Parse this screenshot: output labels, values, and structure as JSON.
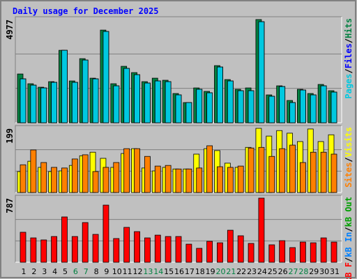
{
  "chart_data": [
    {
      "type": "bar",
      "title": "Daily usage for December 2025",
      "ylim": [
        0,
        4977
      ],
      "yticks": [
        4977
      ],
      "legend_separator": "/",
      "series": [
        {
          "name": "Hits",
          "color": "#008040",
          "values": [
            2352,
            1882,
            1714,
            1982,
            3494,
            2016,
            3091,
            2150,
            4469,
            1882,
            2722,
            2419,
            1982,
            2150,
            2050,
            1411,
            974,
            1680,
            1512,
            2755,
            2083,
            1613,
            1680,
            4977,
            1344,
            1781,
            1075,
            1613,
            1411,
            1848,
            1546
          ]
        },
        {
          "name": "Files",
          "color": "#0000ff",
          "values": [
            2117,
            1814,
            1680,
            1949,
            3494,
            1949,
            3024,
            2117,
            4402,
            1781,
            2621,
            2318,
            1915,
            2016,
            1982,
            1344,
            974,
            1613,
            1445,
            2688,
            2016,
            1546,
            1546,
            4872,
            1277,
            1747,
            974,
            1579,
            1344,
            1781,
            1478
          ]
        },
        {
          "name": "Pages",
          "color": "#00c8e0",
          "values": [
            2117,
            1814,
            1680,
            1949,
            3494,
            1949,
            3024,
            2117,
            4402,
            1781,
            2621,
            2318,
            1915,
            2016,
            1982,
            1344,
            974,
            1613,
            1445,
            2688,
            2016,
            1546,
            1546,
            4872,
            1277,
            1747,
            974,
            1579,
            1344,
            1781,
            1478
          ]
        }
      ]
    },
    {
      "type": "bar",
      "ylim": [
        0,
        199
      ],
      "yticks": [
        199
      ],
      "legend_separator": "/",
      "series": [
        {
          "name": "Visits",
          "color": "#ffff00",
          "values": [
            65,
            97,
            78,
            65,
            67,
            84,
            114,
            125,
            106,
            78,
            121,
            136,
            76,
            67,
            78,
            73,
            73,
            119,
            136,
            130,
            91,
            78,
            140,
            199,
            175,
            192,
            184,
            158,
            197,
            158,
            179
          ]
        },
        {
          "name": "Sites",
          "color": "#ff8000",
          "values": [
            86,
            132,
            93,
            78,
            76,
            104,
            117,
            65,
            78,
            93,
            136,
            136,
            112,
            82,
            84,
            73,
            73,
            76,
            145,
            80,
            78,
            82,
            138,
            140,
            112,
            136,
            147,
            93,
            125,
            125,
            119
          ]
        }
      ]
    },
    {
      "type": "bar",
      "ylim": [
        0,
        787
      ],
      "yticks": [
        787
      ],
      "legend_separator": "/",
      "categories": [
        "1",
        "2",
        "3",
        "4",
        "5",
        "6",
        "7",
        "8",
        "9",
        "10",
        "11",
        "12",
        "13",
        "14",
        "15",
        "16",
        "17",
        "18",
        "19",
        "20",
        "21",
        "22",
        "23",
        "24",
        "25",
        "26",
        "27",
        "28",
        "29",
        "30",
        "31"
      ],
      "category_colors": [
        "#000000",
        "#000000",
        "#000000",
        "#000000",
        "#000000",
        "#008040",
        "#008040",
        "#000000",
        "#000000",
        "#000000",
        "#000000",
        "#000000",
        "#008040",
        "#008040",
        "#000000",
        "#000000",
        "#000000",
        "#000000",
        "#000000",
        "#008040",
        "#008040",
        "#000000",
        "#000000",
        "#000000",
        "#000000",
        "#000000",
        "#008040",
        "#008040",
        "#000000",
        "#000000",
        "#000000"
      ],
      "series": [
        {
          "name": "kB Out",
          "color": "#00a000"
        },
        {
          "name": "kB In",
          "color": "#0080ff"
        },
        {
          "name": "kB F",
          "color": "#ff0000",
          "values": [
            368,
            299,
            274,
            316,
            556,
            316,
            487,
            342,
            701,
            291,
            428,
            376,
            299,
            333,
            316,
            316,
            222,
            171,
            257,
            239,
            393,
            325,
            231,
            787,
            214,
            265,
            180,
            248,
            239,
            299,
            248
          ]
        }
      ]
    }
  ]
}
